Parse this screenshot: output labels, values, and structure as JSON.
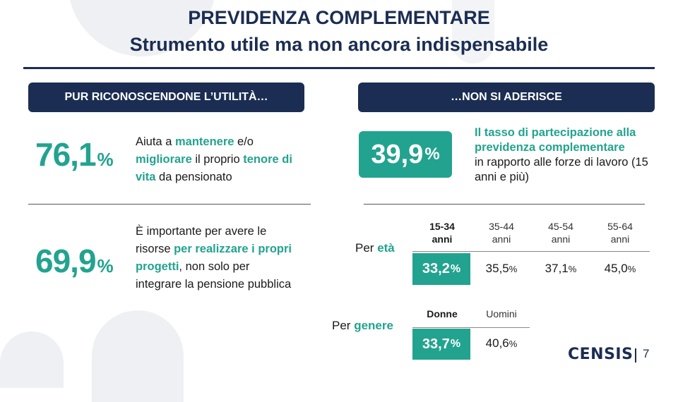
{
  "title": {
    "line1": "PREVIDENZA COMPLEMENTARE",
    "line2": "Strumento utile ma non ancora indispensabile"
  },
  "left": {
    "header": "PUR RICONOSCENDONE L’UTILITÀ…",
    "stat1": {
      "value": "76,1",
      "unit": "%",
      "text": [
        {
          "t": "Aiuta a ",
          "h": false
        },
        {
          "t": "mantenere",
          "h": true
        },
        {
          "t": " e/o ",
          "h": false
        },
        {
          "t": "migliorare",
          "h": true
        },
        {
          "t": " il proprio ",
          "h": false
        },
        {
          "t": "tenore di vita",
          "h": true
        },
        {
          "t": " da pensionato",
          "h": false
        }
      ]
    },
    "stat2": {
      "value": "69,9",
      "unit": "%",
      "text": [
        {
          "t": "È importante per avere le risorse ",
          "h": false
        },
        {
          "t": "per realizzare i propri progetti",
          "h": true
        },
        {
          "t": ", non solo per integrare la pensione pubblica",
          "h": false
        }
      ]
    }
  },
  "right": {
    "header": "…NON SI ADERISCE",
    "badge": {
      "value": "39,9",
      "unit": "%"
    },
    "desc_highlight": "Il tasso di partecipazione alla previdenza complementare",
    "desc_rest": "in rapporto alle forze di lavoro (15 anni e più)",
    "age": {
      "label_prefix": "Per ",
      "label_highlight": "età",
      "columns": [
        {
          "line1": "15-34",
          "line2": "anni",
          "value": "33,2",
          "unit": "%",
          "highlight": true
        },
        {
          "line1": "35-44",
          "line2": "anni",
          "value": "35,5",
          "unit": "%",
          "highlight": false
        },
        {
          "line1": "45-54",
          "line2": "anni",
          "value": "37,1",
          "unit": "%",
          "highlight": false
        },
        {
          "line1": "55-64",
          "line2": "anni",
          "value": "45,0",
          "unit": "%",
          "highlight": false
        }
      ]
    },
    "gender": {
      "label_prefix": "Per ",
      "label_highlight": "genere",
      "columns": [
        {
          "line1": "Donne",
          "value": "33,7",
          "unit": "%",
          "highlight": true
        },
        {
          "line1": "Uomini",
          "value": "40,6",
          "unit": "%",
          "highlight": false
        }
      ]
    }
  },
  "footer": {
    "logo": "CENSIS",
    "page": "7"
  }
}
